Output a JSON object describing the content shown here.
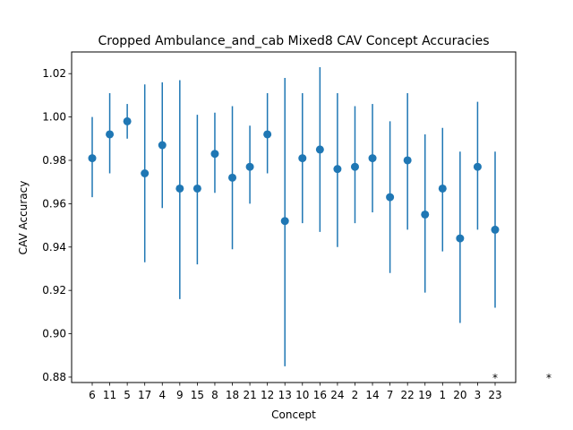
{
  "chart_data": {
    "type": "scatter",
    "title": "Cropped Ambulance_and_cab Mixed8 CAV Concept Accuracies",
    "xlabel": "Concept",
    "ylabel": "CAV Accuracy",
    "ylim": [
      0.8775,
      1.03
    ],
    "yticks": [
      0.88,
      0.9,
      0.92,
      0.94,
      0.96,
      0.98,
      1.0,
      1.02
    ],
    "ytick_labels": [
      "0.88",
      "0.90",
      "0.92",
      "0.94",
      "0.96",
      "0.98",
      "1.00",
      "1.02"
    ],
    "grid": false,
    "legend": "none",
    "categories": [
      "6",
      "11",
      "5",
      "17",
      "4",
      "9",
      "15",
      "8",
      "18",
      "21",
      "12",
      "13",
      "10",
      "16",
      "24",
      "2",
      "14",
      "7",
      "22",
      "19",
      "1",
      "20",
      "3",
      "23"
    ],
    "values": [
      0.981,
      0.992,
      0.998,
      0.974,
      0.987,
      0.967,
      0.967,
      0.983,
      0.972,
      0.977,
      0.992,
      0.952,
      0.981,
      0.985,
      0.976,
      0.977,
      0.981,
      0.963,
      0.98,
      0.955,
      0.967,
      0.944,
      0.977,
      0.948
    ],
    "error_low": [
      0.963,
      0.974,
      0.99,
      0.933,
      0.958,
      0.916,
      0.932,
      0.965,
      0.939,
      0.96,
      0.974,
      0.885,
      0.951,
      0.947,
      0.94,
      0.951,
      0.956,
      0.928,
      0.948,
      0.919,
      0.938,
      0.905,
      0.948,
      0.912
    ],
    "error_high": [
      1.0,
      1.011,
      1.006,
      1.015,
      1.016,
      1.017,
      1.001,
      1.002,
      1.005,
      0.996,
      1.011,
      1.018,
      1.011,
      1.023,
      1.011,
      1.005,
      1.006,
      0.998,
      1.011,
      0.992,
      0.995,
      0.984,
      1.007,
      0.984
    ],
    "annotations": [
      {
        "text": "*",
        "category": "23",
        "y": 0.8775
      },
      {
        "text": "*",
        "category": "",
        "y": 0.8775
      }
    ],
    "colors": {
      "series": "#1f77b4",
      "axes": "#000000",
      "background": "#ffffff"
    }
  }
}
